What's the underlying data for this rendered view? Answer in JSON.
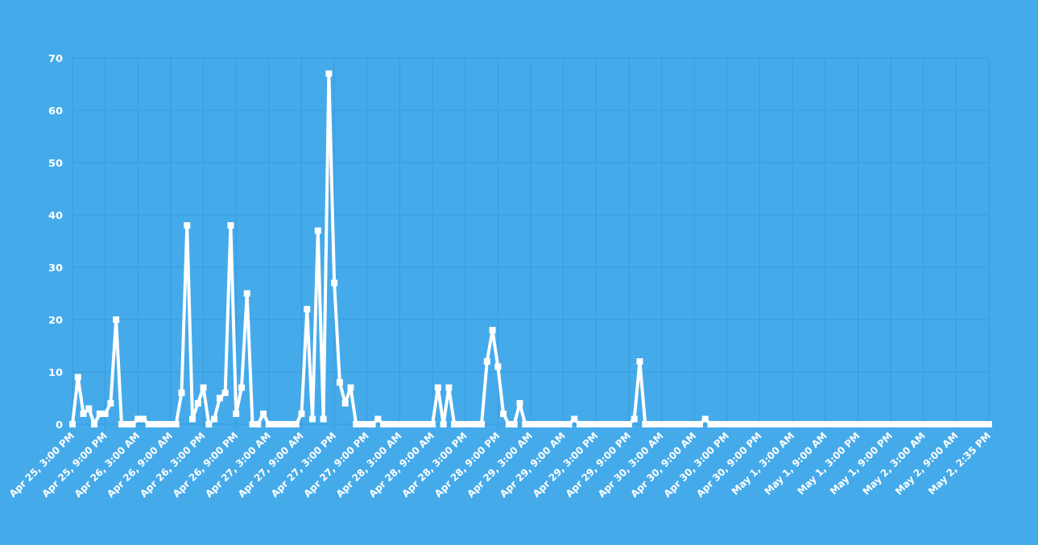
{
  "chart_data": {
    "type": "line",
    "categories": [
      "Apr 25, 3:00 PM",
      null,
      null,
      null,
      null,
      null,
      "Apr 25, 9:00 PM",
      null,
      null,
      null,
      null,
      null,
      "Apr 26, 3:00 AM",
      null,
      null,
      null,
      null,
      null,
      "Apr 26, 9:00 AM",
      null,
      null,
      null,
      null,
      null,
      "Apr 26, 3:00 PM",
      null,
      null,
      null,
      null,
      null,
      "Apr 26, 9:00 PM",
      null,
      null,
      null,
      null,
      null,
      "Apr 27, 3:00 AM",
      null,
      null,
      null,
      null,
      null,
      "Apr 27, 9:00 AM",
      null,
      null,
      null,
      null,
      null,
      "Apr 27, 3:00 PM",
      null,
      null,
      null,
      null,
      null,
      "Apr 27, 9:00 PM",
      null,
      null,
      null,
      null,
      null,
      "Apr 28, 3:00 AM",
      null,
      null,
      null,
      null,
      null,
      "Apr 28, 9:00 AM",
      null,
      null,
      null,
      null,
      null,
      "Apr 28, 3:00 PM",
      null,
      null,
      null,
      null,
      null,
      "Apr 28, 9:00 PM",
      null,
      null,
      null,
      null,
      null,
      "Apr 29, 3:00 AM",
      null,
      null,
      null,
      null,
      null,
      "Apr 29, 9:00 AM",
      null,
      null,
      null,
      null,
      null,
      "Apr 29, 3:00 PM",
      null,
      null,
      null,
      null,
      null,
      "Apr 29, 9:00 PM",
      null,
      null,
      null,
      null,
      null,
      "Apr 30, 3:00 AM",
      null,
      null,
      null,
      null,
      null,
      "Apr 30, 9:00 AM",
      null,
      null,
      null,
      null,
      null,
      "Apr 30, 3:00 PM",
      null,
      null,
      null,
      null,
      null,
      "Apr 30, 9:00 PM",
      null,
      null,
      null,
      null,
      null,
      "May 1, 3:00 AM",
      null,
      null,
      null,
      null,
      null,
      "May 1, 9:00 AM",
      null,
      null,
      null,
      null,
      null,
      "May 1, 3:00 PM",
      null,
      null,
      null,
      null,
      null,
      "May 1, 9:00 PM",
      null,
      null,
      null,
      null,
      null,
      "May 2, 3:00 AM",
      null,
      null,
      null,
      null,
      null,
      "May 2, 9:00 AM",
      null,
      null,
      null,
      null,
      null,
      "May 2, 2:35 PM"
    ],
    "series": [
      {
        "color": "#ffffff",
        "values": [
          0,
          9,
          2,
          3,
          0,
          2,
          2,
          4,
          20,
          0,
          0,
          0,
          1,
          1,
          0,
          0,
          0,
          0,
          0,
          0,
          6,
          38,
          1,
          4,
          7,
          0,
          1,
          5,
          6,
          38,
          2,
          7,
          25,
          0,
          0,
          2,
          0,
          0,
          0,
          0,
          0,
          0,
          2,
          22,
          1,
          37,
          1,
          67,
          27,
          8,
          4,
          7,
          0,
          0,
          0,
          0,
          1,
          0,
          0,
          0,
          0,
          0,
          0,
          0,
          0,
          0,
          0,
          7,
          0,
          7,
          0,
          0,
          0,
          0,
          0,
          0,
          12,
          18,
          11,
          2,
          0,
          0,
          4,
          0,
          0,
          0,
          0,
          0,
          0,
          0,
          0,
          0,
          1,
          0,
          0,
          0,
          0,
          0,
          0,
          0,
          0,
          0,
          0,
          1,
          12,
          0,
          0,
          0,
          0,
          0,
          0,
          0,
          0,
          0,
          0,
          0,
          1,
          0,
          0,
          0,
          0,
          0,
          0,
          0,
          0,
          0,
          0,
          0,
          0,
          0,
          0,
          0,
          0,
          0,
          0,
          0,
          0,
          0,
          0,
          0,
          0,
          0,
          0,
          0,
          0,
          0,
          0,
          0,
          0,
          0,
          0,
          0,
          0,
          0,
          0,
          0,
          0,
          0,
          0,
          0,
          0,
          0,
          0,
          0,
          0,
          0,
          0,
          0,
          0
        ]
      }
    ],
    "ylim": [
      0,
      70
    ],
    "yticks": [
      0,
      10,
      20,
      30,
      40,
      50,
      60,
      70
    ],
    "grid": true,
    "marker": "square"
  }
}
